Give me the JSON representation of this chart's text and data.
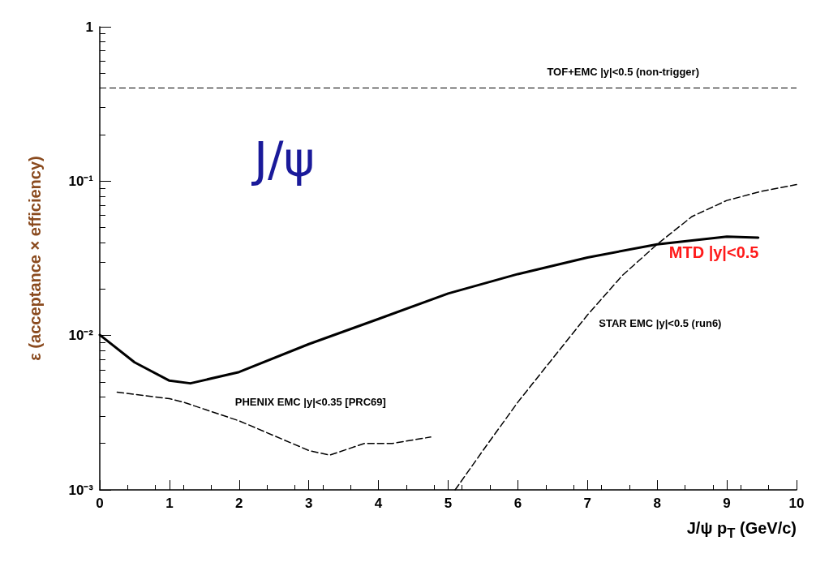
{
  "chart_data": {
    "type": "line",
    "xlabel": "J/ψ p$_{T}$ (GeV/c)",
    "ylabel": "ε (acceptance × efficiency)",
    "log": "y",
    "grid": false,
    "legend": false,
    "marker": "none",
    "xlim": [
      0,
      10
    ],
    "xticks": [
      0,
      1,
      2,
      3,
      4,
      5,
      6,
      7,
      8,
      9,
      10
    ],
    "ylim": [
      0.001,
      1
    ],
    "yticks": [
      {
        "value": 0.001,
        "label": "10⁻³"
      },
      {
        "value": 0.01,
        "label": "10⁻²"
      },
      {
        "value": 0.1,
        "label": "10⁻¹"
      },
      1
    ],
    "annotations": [
      "J/ψ"
    ],
    "ref_lines": [
      {
        "axis": "y",
        "value": 0.4,
        "label": "TOF+EMC |y|<0.5 (non-trigger)",
        "color": "#000000",
        "line_style": "dashed"
      }
    ],
    "series": [
      {
        "name": "MTD |y|<0.5",
        "color": "#000000",
        "line_style": "solid",
        "x": [
          0,
          0.5,
          1,
          1.3,
          2,
          3,
          4,
          5,
          6,
          7,
          8,
          9,
          9.45
        ],
        "values": [
          0.0101,
          0.0067,
          0.0051,
          0.0049,
          0.0058,
          0.0088,
          0.0128,
          0.0187,
          0.025,
          0.032,
          0.039,
          0.0437,
          0.0431
        ]
      },
      {
        "name": "PHENIX EMC |y|<0.35 [PRC69]",
        "color": "#000000",
        "line_style": "dashed",
        "x": [
          0.25,
          1,
          1.2,
          2,
          3,
          3.3,
          3.8,
          4.2,
          4.75
        ],
        "values": [
          0.0043,
          0.0039,
          0.0037,
          0.0028,
          0.0018,
          0.00168,
          0.002,
          0.002,
          0.0022
        ]
      },
      {
        "name": "STAR EMC |y|<0.5 (run6)",
        "color": "#000000",
        "line_style": "dashed",
        "x": [
          5.1,
          5.5,
          6,
          6.5,
          7,
          7.5,
          8,
          8.5,
          9,
          9.5,
          10
        ],
        "values": [
          0.001,
          0.0018,
          0.0037,
          0.0071,
          0.0136,
          0.0245,
          0.039,
          0.059,
          0.075,
          0.086,
          0.095
        ]
      }
    ]
  }
}
